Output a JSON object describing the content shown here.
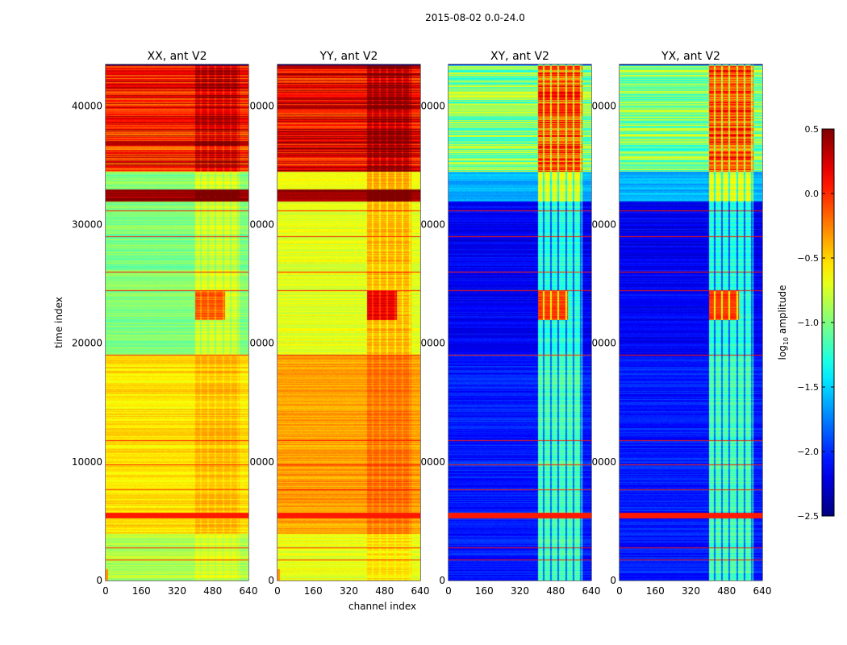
{
  "chart_data": {
    "type": "heatmap",
    "title": "2015-08-02 0.0-24.0",
    "xlabel": "channel index",
    "ylabel": "time index",
    "xlim": [
      0,
      640
    ],
    "ylim": [
      0,
      43500
    ],
    "xticks": [
      "0",
      "160",
      "320",
      "480",
      "640"
    ],
    "xtick_values": [
      0,
      160,
      320,
      480,
      640
    ],
    "yticks": [
      "0",
      "10000",
      "20000",
      "30000",
      "40000"
    ],
    "ytick_values": [
      0,
      10000,
      20000,
      30000,
      40000
    ],
    "colormap": "jet",
    "colorbar": {
      "label_prefix": "log",
      "label_sub": "10",
      "label_suffix": " amplitude",
      "range": [
        -2.5,
        0.5
      ],
      "ticks": [
        "0.5",
        "0.0",
        "−0.5",
        "−1.0",
        "−1.5",
        "−2.0",
        "−2.5"
      ],
      "tick_values": [
        0.5,
        0.0,
        -0.5,
        -1.0,
        -1.5,
        -2.0,
        -2.5
      ]
    },
    "flag_rows": [
      1800,
      2800,
      5500,
      7700,
      9800,
      11800,
      19000,
      24500,
      26000,
      29000,
      31200
    ],
    "panels": [
      {
        "title": "XX, ant V2",
        "rfi_channel_range": [
          400,
          600
        ],
        "rfi_boost": 0.25,
        "bands": [
          [
            0,
            4000,
            -0.85
          ],
          [
            4000,
            19000,
            -0.55
          ],
          [
            19000,
            32000,
            -1.0
          ],
          [
            32000,
            33000,
            0.4
          ],
          [
            33000,
            34500,
            -1.0
          ],
          [
            34500,
            43500,
            0.05
          ]
        ]
      },
      {
        "title": "YY, ant V2",
        "rfi_channel_range": [
          400,
          600
        ],
        "rfi_boost": 0.3,
        "bands": [
          [
            0,
            4000,
            -0.7
          ],
          [
            4000,
            19000,
            -0.35
          ],
          [
            19000,
            32000,
            -0.7
          ],
          [
            32000,
            33000,
            0.4
          ],
          [
            33000,
            34500,
            -0.7
          ],
          [
            34500,
            43500,
            0.15
          ]
        ]
      },
      {
        "title": "XY, ant V2",
        "rfi_channel_range": [
          400,
          600
        ],
        "rfi_boost": 0.9,
        "bands": [
          [
            0,
            19000,
            -2.05
          ],
          [
            19000,
            32000,
            -2.15
          ],
          [
            32000,
            34500,
            -1.6
          ],
          [
            34500,
            43500,
            -1.0
          ]
        ]
      },
      {
        "title": "YX, ant V2",
        "rfi_channel_range": [
          400,
          600
        ],
        "rfi_boost": 0.9,
        "bands": [
          [
            0,
            19000,
            -2.05
          ],
          [
            19000,
            32000,
            -2.15
          ],
          [
            32000,
            34500,
            -1.6
          ],
          [
            34500,
            43500,
            -1.0
          ]
        ]
      }
    ]
  }
}
